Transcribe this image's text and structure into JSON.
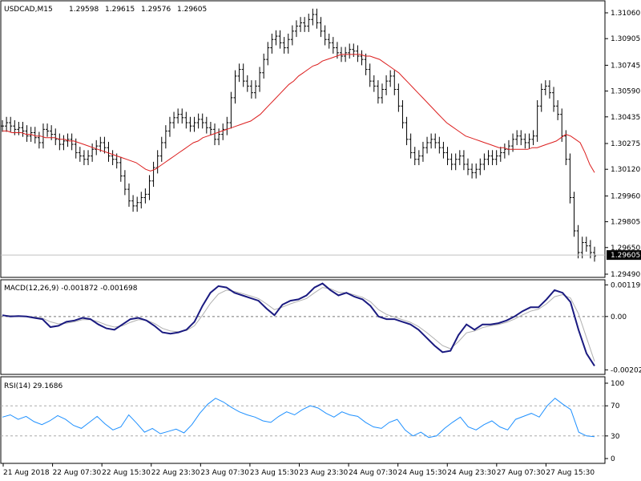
{
  "chart_data": [
    {
      "type": "bar",
      "subtype": "ohlc",
      "symbol_header": "USDCAD,M15",
      "ohlc_values": [
        "1.29598",
        "1.29615",
        "1.29576",
        "1.29605"
      ],
      "y_ticks": [
        "1.31060",
        "1.30905",
        "1.30745",
        "1.30590",
        "1.30435",
        "1.30275",
        "1.30120",
        "1.29960",
        "1.29805",
        "1.29650",
        "1.29490"
      ],
      "ylim": [
        1.2949,
        1.3106
      ],
      "current_price": "1.29605",
      "moving_average_color": "#dc1e1e",
      "bar_color": "#000000",
      "series": [
        {
          "name": "close",
          "values": [
            1.3038,
            1.304,
            1.3038,
            1.3036,
            1.3037,
            1.3035,
            1.3032,
            1.3034,
            1.3031,
            1.3028,
            1.3036,
            1.3035,
            1.3033,
            1.303,
            1.3027,
            1.3029,
            1.303,
            1.3027,
            1.3022,
            1.302,
            1.3018,
            1.302,
            1.3024,
            1.3026,
            1.3028,
            1.3025,
            1.302,
            1.3018,
            1.3016,
            1.3008,
            1.3,
            1.2993,
            1.299,
            1.2992,
            1.2995,
            1.2997,
            1.3005,
            1.3013,
            1.302,
            1.3028,
            1.3035,
            1.304,
            1.3043,
            1.3045,
            1.3043,
            1.304,
            1.3038,
            1.304,
            1.3042,
            1.304,
            1.3037,
            1.3036,
            1.303,
            1.3033,
            1.3036,
            1.304,
            1.3055,
            1.3068,
            1.3072,
            1.3065,
            1.3062,
            1.3058,
            1.3062,
            1.307,
            1.3078,
            1.3085,
            1.309,
            1.3092,
            1.3088,
            1.3085,
            1.309,
            1.3095,
            1.3098,
            1.31,
            1.3098,
            1.3102,
            1.3105,
            1.31,
            1.3095,
            1.309,
            1.3088,
            1.3085,
            1.3082,
            1.308,
            1.3082,
            1.3084,
            1.3083,
            1.308,
            1.3078,
            1.3072,
            1.3065,
            1.3062,
            1.3055,
            1.306,
            1.3065,
            1.3068,
            1.306,
            1.305,
            1.304,
            1.303,
            1.3022,
            1.3018,
            1.302,
            1.3025,
            1.3028,
            1.303,
            1.3028,
            1.3025,
            1.3022,
            1.3018,
            1.3015,
            1.3018,
            1.302,
            1.3015,
            1.3012,
            1.301,
            1.3012,
            1.3015,
            1.3018,
            1.302,
            1.3018,
            1.302,
            1.3022,
            1.3024,
            1.3026,
            1.303,
            1.3032,
            1.303,
            1.3028,
            1.303,
            1.3032,
            1.305,
            1.306,
            1.3062,
            1.3058,
            1.305,
            1.3045,
            1.3032,
            1.3018,
            1.2995,
            1.2975,
            1.2962,
            1.2968,
            1.2966,
            1.2962,
            1.296
          ]
        },
        {
          "name": "moving_average",
          "values": [
            1.3035,
            1.3035,
            1.3034,
            1.3034,
            1.3034,
            1.3033,
            1.3033,
            1.3032,
            1.3032,
            1.3031,
            1.3031,
            1.3031,
            1.303,
            1.303,
            1.3029,
            1.3029,
            1.3028,
            1.3027,
            1.3026,
            1.3025,
            1.3024,
            1.3023,
            1.3022,
            1.3021,
            1.302,
            1.3019,
            1.3018,
            1.3017,
            1.3016,
            1.3014,
            1.3012,
            1.3011,
            1.3012,
            1.3014,
            1.3016,
            1.3018,
            1.302,
            1.3022,
            1.3024,
            1.3026,
            1.3028,
            1.3029,
            1.3031,
            1.3032,
            1.3033,
            1.3034,
            1.3035,
            1.3036,
            1.3037,
            1.3038,
            1.3039,
            1.304,
            1.3041,
            1.3043,
            1.3045,
            1.3048,
            1.3051,
            1.3054,
            1.3057,
            1.306,
            1.3063,
            1.3065,
            1.3068,
            1.307,
            1.3072,
            1.3074,
            1.3075,
            1.3077,
            1.3078,
            1.3079,
            1.308,
            1.3081,
            1.3081,
            1.3081,
            1.3081,
            1.3081,
            1.308,
            1.308,
            1.3079,
            1.3078,
            1.3076,
            1.3074,
            1.3072,
            1.307,
            1.3067,
            1.3064,
            1.3061,
            1.3058,
            1.3055,
            1.3052,
            1.3049,
            1.3046,
            1.3043,
            1.304,
            1.3038,
            1.3036,
            1.3034,
            1.3032,
            1.3031,
            1.303,
            1.3029,
            1.3028,
            1.3027,
            1.3026,
            1.3025,
            1.3025,
            1.3024,
            1.3024,
            1.3024,
            1.3024,
            1.3024,
            1.3025,
            1.3025,
            1.3026,
            1.3027,
            1.3028,
            1.3029,
            1.3031,
            1.3033,
            1.3032,
            1.303,
            1.3028,
            1.3022,
            1.3015,
            1.301
          ]
        }
      ]
    },
    {
      "type": "line",
      "title": "MACD(12,26,9) -0.001872 -0.001698",
      "y_ticks": [
        "0.001199",
        "0.00",
        "-0.00202"
      ],
      "ylim": [
        -0.0021,
        0.0013
      ],
      "series": [
        {
          "name": "main",
          "color": "#1a1a80",
          "values": [
            5e-05,
            0.0,
            2e-05,
            0.0,
            -5e-05,
            -0.0001,
            -0.0004,
            -0.00035,
            -0.0002,
            -0.00015,
            -5e-05,
            -0.0001,
            -0.0003,
            -0.00045,
            -0.0005,
            -0.0003,
            -0.0001,
            -5e-05,
            -0.00015,
            -0.00035,
            -0.0006,
            -0.00065,
            -0.0006,
            -0.0005,
            -0.0002,
            0.0004,
            0.0009,
            0.00115,
            0.0011,
            0.0009,
            0.0008,
            0.0007,
            0.0006,
            0.0003,
            5e-05,
            0.00045,
            0.0006,
            0.00065,
            0.0008,
            0.0011,
            0.00125,
            0.001,
            0.0008,
            0.0009,
            0.00075,
            0.00065,
            0.0004,
            0.0,
            -0.0001,
            -0.0001,
            -0.0002,
            -0.0003,
            -0.0005,
            -0.0008,
            -0.0011,
            -0.00135,
            -0.0013,
            -0.0007,
            -0.0003,
            -0.0005,
            -0.0003,
            -0.0003,
            -0.00025,
            -0.00015,
            0.0,
            0.0002,
            0.00035,
            0.00035,
            0.00065,
            0.001,
            0.0009,
            0.00055,
            -0.0005,
            -0.0014,
            -0.00187
          ]
        },
        {
          "name": "signal",
          "color": "#b0b0b0",
          "values": [
            5e-05,
            3e-05,
            2e-05,
            1e-05,
            -2e-05,
            -6e-05,
            -0.0002,
            -0.00028,
            -0.00025,
            -0.0002,
            -0.00012,
            -0.00012,
            -0.0002,
            -0.00032,
            -0.0004,
            -0.00035,
            -0.00022,
            -0.00012,
            -0.00014,
            -0.00026,
            -0.00045,
            -0.00055,
            -0.00058,
            -0.00053,
            -0.00035,
            5e-05,
            0.0005,
            0.00085,
            0.001,
            0.00095,
            0.00087,
            0.00078,
            0.00068,
            0.00048,
            0.00026,
            0.00036,
            0.00048,
            0.00058,
            0.00068,
            0.0009,
            0.0011,
            0.00105,
            0.00092,
            0.0009,
            0.00082,
            0.00073,
            0.00056,
            0.00026,
            8e-05,
            -2e-05,
            -0.00012,
            -0.00022,
            -0.00038,
            -0.0006,
            -0.00085,
            -0.0011,
            -0.00122,
            -0.00095,
            -0.00062,
            -0.00055,
            -0.00042,
            -0.00035,
            -0.0003,
            -0.00022,
            -0.0001,
            6e-05,
            0.0002,
            0.00028,
            0.00048,
            0.00075,
            0.00083,
            0.0007,
            0.0001,
            -0.0008,
            -0.0017
          ]
        }
      ]
    },
    {
      "type": "line",
      "title": "RSI(14) 29.1686",
      "y_ticks": [
        "100",
        "70",
        "30",
        "0"
      ],
      "ylim": [
        0,
        100
      ],
      "levels": [
        70,
        30
      ],
      "series": [
        {
          "name": "rsi",
          "color": "#1e90ff",
          "values": [
            55,
            58,
            52,
            56,
            49,
            45,
            50,
            57,
            52,
            44,
            40,
            48,
            56,
            46,
            38,
            42,
            58,
            47,
            35,
            40,
            33,
            36,
            39,
            34,
            45,
            60,
            72,
            80,
            75,
            68,
            62,
            58,
            55,
            50,
            48,
            56,
            62,
            58,
            65,
            70,
            67,
            60,
            55,
            62,
            58,
            56,
            48,
            42,
            40,
            48,
            52,
            38,
            30,
            35,
            28,
            30,
            40,
            48,
            55,
            42,
            38,
            45,
            50,
            42,
            38,
            52,
            56,
            60,
            55,
            70,
            80,
            72,
            65,
            35,
            30,
            29
          ]
        }
      ]
    }
  ],
  "x_axis_labels": [
    "21 Aug 2018",
    "22 Aug 07:30",
    "22 Aug 15:30",
    "22 Aug 23:30",
    "23 Aug 07:30",
    "23 Aug 15:30",
    "23 Aug 23:30",
    "24 Aug 07:30",
    "24 Aug 15:30",
    "24 Aug 23:30",
    "27 Aug 07:30",
    "27 Aug 15:30"
  ]
}
